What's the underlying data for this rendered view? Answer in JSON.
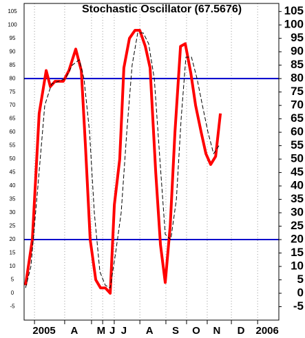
{
  "chart_data": {
    "type": "line",
    "title": "Stochastic Oscillator (67.5676)",
    "series": [
      {
        "color": "#ff0000",
        "width": 4,
        "dash": false,
        "x": [
          0.07,
          0.4,
          0.73,
          1.07,
          1.27,
          1.5,
          1.9,
          2.17,
          2.5,
          2.77,
          2.97,
          3.2,
          3.47,
          3.7,
          3.93,
          4.17,
          4.37,
          4.63,
          4.83,
          5.1,
          5.37,
          5.6,
          5.87,
          6.1,
          6.37,
          6.6,
          6.83,
          7.07,
          7.3,
          7.57,
          7.8,
          8.07,
          8.3,
          8.57,
          8.8,
          9.03,
          9.27,
          9.5
        ],
        "values": [
          3,
          20,
          67,
          83,
          77,
          79,
          79,
          83,
          91,
          83,
          55,
          20,
          5,
          2,
          2,
          0,
          33,
          50,
          84,
          95,
          98,
          98,
          92,
          84,
          45,
          18,
          4,
          25,
          60,
          92,
          93,
          82,
          70,
          60,
          52,
          48,
          51,
          67
        ]
      },
      {
        "color": "#000000",
        "width": 1,
        "dash": true,
        "x": [
          0.07,
          0.33,
          0.67,
          1.0,
          1.33,
          1.67,
          2.0,
          2.33,
          2.67,
          2.9,
          3.17,
          3.4,
          3.67,
          3.93,
          4.17,
          4.43,
          4.7,
          4.97,
          5.23,
          5.5,
          5.77,
          6.03,
          6.3,
          6.57,
          6.83,
          7.1,
          7.37,
          7.6,
          7.83,
          8.1,
          8.37,
          8.63,
          8.9,
          9.17,
          9.43
        ],
        "values": [
          2,
          10,
          40,
          70,
          78,
          79,
          80,
          85,
          87,
          80,
          60,
          30,
          8,
          3,
          2,
          15,
          30,
          60,
          85,
          97,
          97,
          93,
          80,
          50,
          22,
          20,
          35,
          65,
          88,
          88,
          80,
          70,
          60,
          52,
          55
        ]
      }
    ],
    "reference_lines": [
      80,
      20
    ],
    "reference_color": "#0000cc",
    "xlim": [
      0,
      12.33
    ],
    "xticks": [
      {
        "value": 0.97,
        "label": "2005"
      },
      {
        "value": 2.43,
        "label": "A"
      },
      {
        "value": 3.73,
        "label": "M"
      },
      {
        "value": 4.27,
        "label": "J"
      },
      {
        "value": 4.83,
        "label": "J"
      },
      {
        "value": 6.07,
        "label": "A"
      },
      {
        "value": 7.33,
        "label": "S"
      },
      {
        "value": 8.33,
        "label": "O"
      },
      {
        "value": 9.33,
        "label": "N"
      },
      {
        "value": 10.5,
        "label": "D"
      },
      {
        "value": 11.77,
        "label": "2006"
      }
    ],
    "ylim": [
      -10,
      108
    ],
    "yticks": [
      -5,
      0,
      5,
      10,
      15,
      20,
      25,
      30,
      35,
      40,
      45,
      50,
      55,
      60,
      65,
      70,
      75,
      80,
      85,
      90,
      95,
      100,
      105
    ],
    "grid": true
  }
}
